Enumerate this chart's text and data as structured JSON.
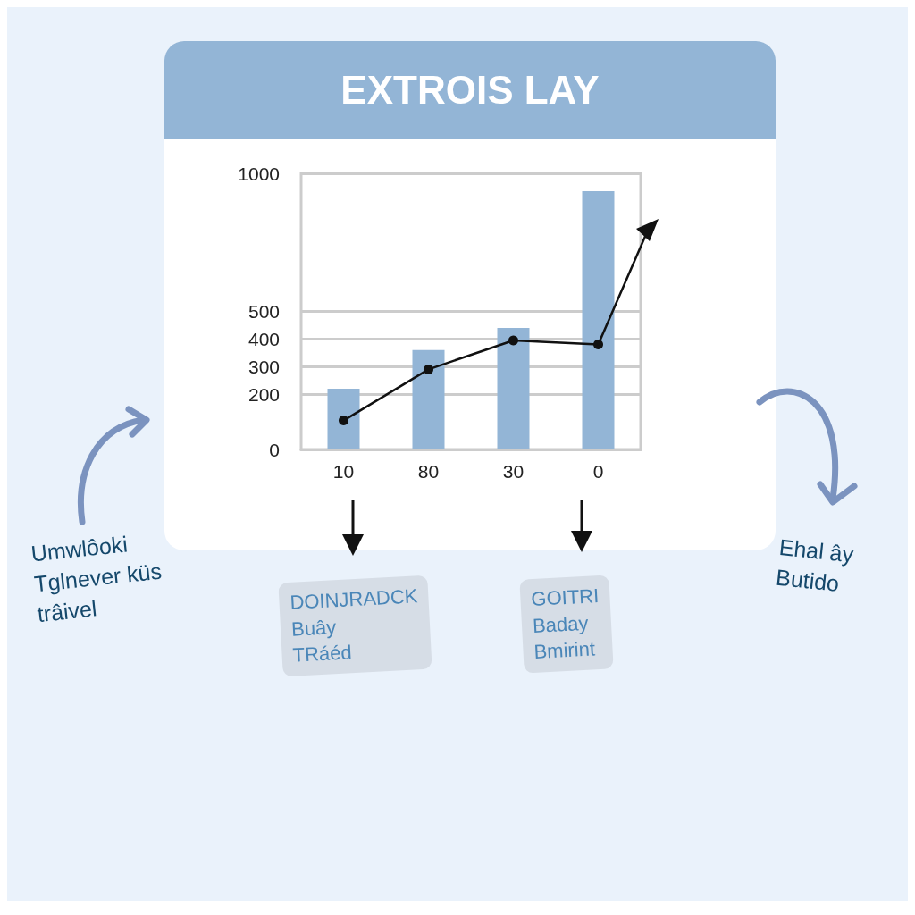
{
  "chart_data": {
    "type": "bar",
    "title": "EXTROIS LAY",
    "categories": [
      "10",
      "80",
      "30",
      "0"
    ],
    "series": [
      {
        "color": "#93b5d6",
        "values": [
          220,
          360,
          440,
          935
        ]
      },
      {
        "type": "line",
        "color": "#111111",
        "values": [
          105,
          290,
          395,
          380
        ],
        "marker": "circle",
        "line_style": "solid"
      }
    ],
    "ylim": [
      0,
      1000
    ],
    "yticks": [
      0,
      200,
      300,
      400,
      500,
      1000
    ],
    "grid": "y",
    "annotations": [
      "Umwlôoki\nTglnever küs\ntrâivel",
      "DOINJRADCK\nBuây\nTRáéd",
      "GOITRI\nBaday\nBmirint",
      "Ehal ây\nButido"
    ]
  }
}
